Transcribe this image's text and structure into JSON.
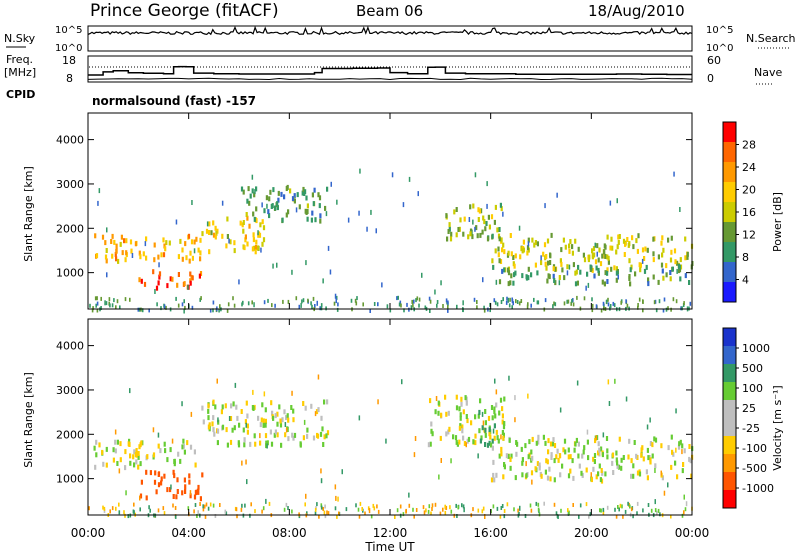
{
  "header": {
    "station": "Prince George (fitACF)",
    "beam": "Beam 06",
    "date": "18/Aug/2010"
  },
  "strips": {
    "nsky_label": "N.Sky",
    "nsky_ticks": [
      "10^5",
      "10^0"
    ],
    "nsearch_label": "N.Search",
    "nsearch_ticks": [
      "10^5",
      "10^0"
    ],
    "freq_label": "Freq.",
    "freq_unit": "[MHz]",
    "freq_ticks": [
      "18",
      "8"
    ],
    "nave_label": "Nave",
    "nave_ticks": [
      "60",
      "0"
    ],
    "cpid_label": "CPID",
    "cpid_text": "normalsound (fast) -157"
  },
  "freq_series": {
    "x_hours": [
      0,
      0.6,
      1.0,
      1.6,
      2.2,
      3.0,
      3.4,
      3.6,
      3.9,
      4.2,
      5.0,
      6.0,
      7.0,
      8.0,
      9.0,
      9.3,
      10.5,
      10.8,
      11.5,
      12.0,
      12.7,
      13.5,
      13.8,
      14.2,
      15.0,
      16.0,
      17.0,
      18.0,
      19.0,
      20.0,
      21.0,
      22.0,
      23.0,
      24.0
    ],
    "y_mhz": [
      10.5,
      11.8,
      12.3,
      11.4,
      11.2,
      11.0,
      13.9,
      14.0,
      13.9,
      11.3,
      11.0,
      10.9,
      10.9,
      10.9,
      11.5,
      13.2,
      13.3,
      13.3,
      13.4,
      11.5,
      11.0,
      13.7,
      13.8,
      11.3,
      11.0,
      11.0,
      10.8,
      10.8,
      10.8,
      10.8,
      10.9,
      10.8,
      10.7,
      10.7
    ]
  },
  "panels": {
    "power": {
      "ylabel": "Slant Range [km]",
      "yticks": [
        "4000",
        "3000",
        "2000",
        "1000"
      ],
      "cbar_label": "Power [dB]",
      "cbar_ticks": [
        "28",
        "24",
        "20",
        "16",
        "12",
        "8",
        "4"
      ],
      "cbar_colors": [
        "#ff0000",
        "#ff6600",
        "#ff9900",
        "#ffcc00",
        "#cccc00",
        "#669933",
        "#339966",
        "#3366cc",
        "#1a1aff"
      ]
    },
    "velocity": {
      "ylabel": "Slant Range [km]",
      "yticks": [
        "4000",
        "3000",
        "2000",
        "1000"
      ],
      "cbar_label": "Velocity [m s⁻¹]",
      "cbar_ticks": [
        "1000",
        "500",
        "100",
        "25",
        "-25",
        "-100",
        "-500",
        "-1000"
      ],
      "cbar_colors": [
        "#1a33cc",
        "#3366cc",
        "#339966",
        "#66cc33",
        "#bfbfbf",
        "#bfbfbf",
        "#ffcc00",
        "#ff9900",
        "#ff5500",
        "#ff0000"
      ]
    }
  },
  "xaxis": {
    "ticks": [
      "00:00",
      "04:00",
      "08:00",
      "12:00",
      "16:00",
      "20:00",
      "00:00"
    ],
    "label": "Time UT"
  },
  "chart_data": [
    {
      "type": "line",
      "name_hint": "sky noise strip",
      "x_range_hours": [
        0,
        24
      ],
      "ylim_log10": [
        0,
        5
      ]
    },
    {
      "type": "line",
      "name_hint": "operating frequency strip",
      "x_range_hours": [
        0,
        24
      ],
      "ylim": [
        8,
        18
      ],
      "ylim_nave": [
        0,
        60
      ]
    },
    {
      "type": "heatmap",
      "name_hint": "power panel",
      "x_range_hours": [
        0,
        24
      ],
      "ylim_km": [
        180,
        4600
      ],
      "color_range_db": [
        0,
        32
      ],
      "regions": [
        {
          "t": [
            0.2,
            4.5
          ],
          "r": [
            1300,
            1900
          ],
          "v": 22
        },
        {
          "t": [
            2.0,
            4.5
          ],
          "r": [
            700,
            1100
          ],
          "v": 28
        },
        {
          "t": [
            4.5,
            7.0
          ],
          "r": [
            1500,
            2300
          ],
          "v": 18
        },
        {
          "t": [
            6.0,
            9.5
          ],
          "r": [
            2200,
            3000
          ],
          "v": 10
        },
        {
          "t": [
            14.0,
            16.5
          ],
          "r": [
            1800,
            2600
          ],
          "v": 14
        },
        {
          "t": [
            16.0,
            24.0
          ],
          "r": [
            1100,
            1900
          ],
          "v": 16
        },
        {
          "t": [
            16.0,
            24.0
          ],
          "r": [
            800,
            1200
          ],
          "v": 10
        }
      ]
    },
    {
      "type": "heatmap",
      "name_hint": "velocity panel",
      "x_range_hours": [
        0,
        24
      ],
      "ylim_km": [
        180,
        4600
      ],
      "color_range_ms": [
        -1000,
        1000
      ],
      "regions": [
        {
          "t": [
            0.2,
            4.5
          ],
          "r": [
            1300,
            1900
          ],
          "v": 0
        },
        {
          "t": [
            2.0,
            4.5
          ],
          "r": [
            600,
            1200
          ],
          "v": -500
        },
        {
          "t": [
            4.5,
            9.5
          ],
          "r": [
            1800,
            2800
          ],
          "v": 0
        },
        {
          "t": [
            13.5,
            16.5
          ],
          "r": [
            1800,
            2900
          ],
          "v": 0
        },
        {
          "t": [
            15.5,
            16.2
          ],
          "r": [
            1800,
            2600
          ],
          "v": 100
        },
        {
          "t": [
            16.0,
            24.0
          ],
          "r": [
            1000,
            2000
          ],
          "v": 0
        }
      ]
    }
  ]
}
